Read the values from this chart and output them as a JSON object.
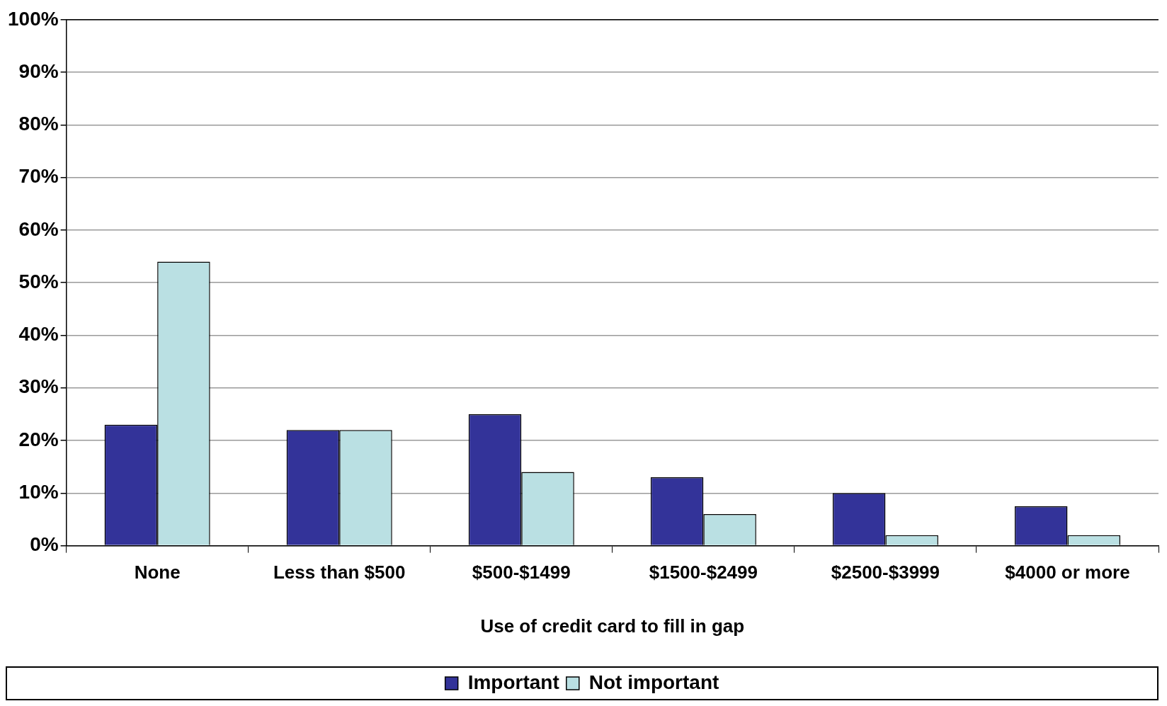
{
  "chart_data": {
    "type": "bar",
    "xlabel": "Use of credit card to fill in gap",
    "categories": [
      "None",
      "Less than $500",
      "$500-$1499",
      "$1500-$2499",
      "$2500-$3999",
      "$4000 or more"
    ],
    "series": [
      {
        "name": "Important",
        "color": "#333399",
        "values": [
          23,
          22,
          25,
          13,
          10,
          7.5
        ]
      },
      {
        "name": "Not important",
        "color": "#bae0e3",
        "values": [
          54,
          22,
          14,
          6,
          2,
          2
        ]
      }
    ],
    "ylim": [
      0,
      100
    ],
    "yticks": [
      {
        "value": 0,
        "label": "0%"
      },
      {
        "value": 10,
        "label": "10%"
      },
      {
        "value": 20,
        "label": "20%"
      },
      {
        "value": 30,
        "label": "30%"
      },
      {
        "value": 40,
        "label": "40%"
      },
      {
        "value": 50,
        "label": "50%"
      },
      {
        "value": 60,
        "label": "60%"
      },
      {
        "value": 70,
        "label": "70%"
      },
      {
        "value": 80,
        "label": "80%"
      },
      {
        "value": 90,
        "label": "90%"
      },
      {
        "value": 100,
        "label": "100%"
      }
    ],
    "grid": "y",
    "legend": "bottom"
  }
}
